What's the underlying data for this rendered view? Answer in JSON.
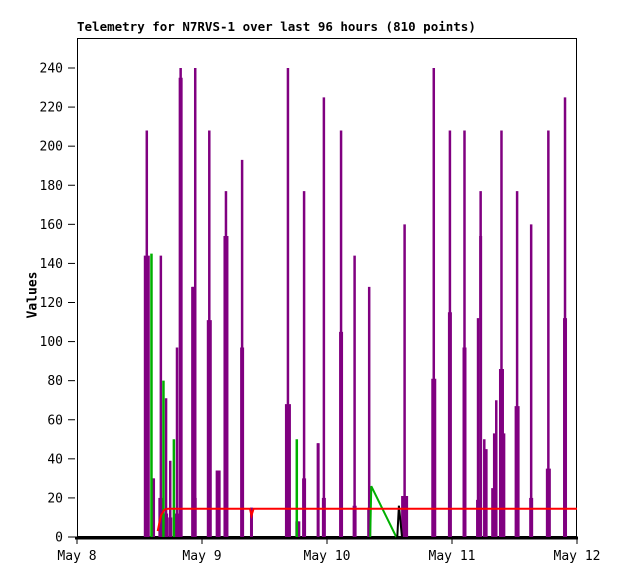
{
  "window": {
    "background": "#FFFFFF"
  },
  "chart_data": {
    "type": "line",
    "title": "Telemetry for N7RVS-1 over last 96 hours (810 points)",
    "ylabel": "Values",
    "xlabel": "",
    "points_count": 810,
    "station": "N7RVS-1",
    "timespan_hours": 96,
    "ylim": [
      0,
      240
    ],
    "xlim_hours": [
      0,
      96
    ],
    "grid": false,
    "legend": "none",
    "background": "#FFFFFF",
    "axis_color": "#000000",
    "y_ticks": [
      0,
      20,
      40,
      60,
      80,
      100,
      120,
      140,
      160,
      180,
      200,
      220,
      240
    ],
    "x_ticks": [
      {
        "hours": 0,
        "label": "May 8"
      },
      {
        "hours": 24,
        "label": "May 9"
      },
      {
        "hours": 48,
        "label": "May 10"
      },
      {
        "hours": 72,
        "label": "May 11"
      },
      {
        "hours": 96,
        "label": "May 12"
      }
    ],
    "series": [
      {
        "name": "channel-purple-impulses",
        "type": "impulse",
        "color": "#800080",
        "comment": "points are [hours_since_May8, value, optional_base_value, optional_base_width_px]",
        "points": [
          [
            13.4,
            208,
            144,
            6
          ],
          [
            14.6,
            30,
            30,
            4
          ],
          [
            16.1,
            144,
            20,
            5
          ],
          [
            17.1,
            71,
            12,
            4
          ],
          [
            17.9,
            39,
            10,
            4
          ],
          [
            19.2,
            97,
            12,
            4
          ],
          [
            19.9,
            240,
            235,
            4
          ],
          [
            22.3,
            128,
            128,
            4
          ],
          [
            22.7,
            240,
            20,
            3
          ],
          [
            25.4,
            208,
            111,
            5
          ],
          [
            27.1,
            34,
            34,
            5
          ],
          [
            28.6,
            177,
            154,
            5
          ],
          [
            31.7,
            193,
            97,
            4
          ],
          [
            33.5,
            15,
            15,
            3
          ],
          [
            40.5,
            240,
            68,
            6
          ],
          [
            42.4,
            8,
            8,
            5
          ],
          [
            43.6,
            177,
            30,
            4
          ],
          [
            46.3,
            48,
            48,
            3
          ],
          [
            47.4,
            225,
            20,
            4
          ],
          [
            50.7,
            208,
            105,
            4
          ],
          [
            53.3,
            144,
            16,
            4
          ],
          [
            56.1,
            128,
            15,
            4
          ],
          [
            62.9,
            160,
            21,
            7
          ],
          [
            68.5,
            240,
            81,
            5
          ],
          [
            71.6,
            208,
            115,
            4
          ],
          [
            74.4,
            208,
            97,
            4
          ],
          [
            77.0,
            112,
            19,
            4
          ],
          [
            77.5,
            177,
            154,
            3
          ],
          [
            78.2,
            50
          ],
          [
            78.6,
            45
          ],
          [
            80.1,
            53,
            25,
            6
          ],
          [
            80.5,
            70
          ],
          [
            81.5,
            208,
            86,
            5
          ],
          [
            82.0,
            53
          ],
          [
            84.5,
            177,
            67,
            5
          ],
          [
            87.2,
            160,
            20,
            4
          ],
          [
            90.5,
            208,
            35,
            5
          ],
          [
            93.7,
            225,
            112,
            4
          ]
        ]
      },
      {
        "name": "channel-green-impulses",
        "type": "impulse",
        "color": "#00B000",
        "points": [
          [
            14.3,
            145
          ],
          [
            16.6,
            80
          ],
          [
            18.6,
            50
          ],
          [
            42.2,
            50
          ]
        ]
      },
      {
        "name": "channel-green-line",
        "type": "polyline",
        "color": "#00B000",
        "points": [
          [
            56.3,
            0
          ],
          [
            56.5,
            26
          ],
          [
            61.3,
            0
          ]
        ]
      },
      {
        "name": "channel-black-line",
        "type": "polyline",
        "color": "#000000",
        "points": [
          [
            61.5,
            0
          ],
          [
            61.8,
            16
          ],
          [
            62.4,
            0
          ]
        ]
      },
      {
        "name": "channel-red-line",
        "type": "polyline",
        "color": "#FF0000",
        "points": [
          [
            15.5,
            3
          ],
          [
            16.1,
            11
          ],
          [
            16.8,
            14
          ],
          [
            17.5,
            14.5
          ],
          [
            33.2,
            14.5
          ],
          [
            33.5,
            11
          ],
          [
            33.9,
            14.5
          ],
          [
            96,
            14.5
          ]
        ]
      }
    ]
  }
}
